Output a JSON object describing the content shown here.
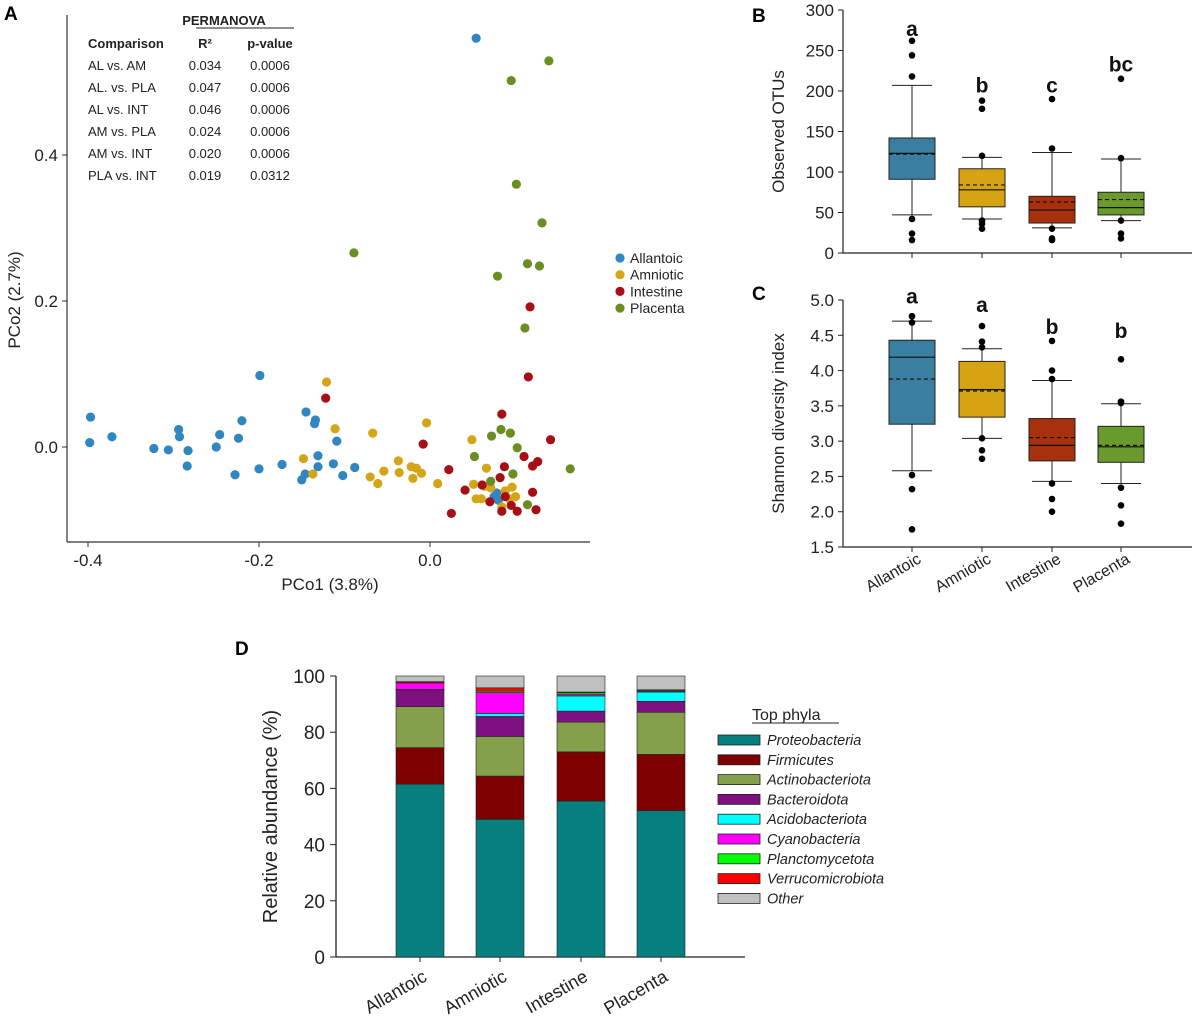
{
  "chart_data": [
    {
      "panel": "A",
      "type": "scatter",
      "xlabel": "PCo1 (3.8%)",
      "ylabel": "PCo2 (2.7%)",
      "xticks": [
        "-0.4",
        "-0.2",
        "0.0"
      ],
      "xtick_values": [
        -0.4,
        -0.2,
        0.0
      ],
      "yticks": [
        "0.0",
        "0.2",
        "0.4"
      ],
      "ytick_values": [
        0.0,
        0.2,
        0.4
      ],
      "legend_position": "right",
      "table": {
        "title": "PERMANOVA",
        "headers": [
          "Comparison",
          "R²",
          "p-value"
        ],
        "rows": [
          [
            "AL vs. AM",
            "0.034",
            "0.0006"
          ],
          [
            "AL. vs. PLA",
            "0.047",
            "0.0006"
          ],
          [
            "AL vs. INT",
            "0.046",
            "0.0006"
          ],
          [
            "AM vs. PLA",
            "0.024",
            "0.0006"
          ],
          [
            "AM vs. INT",
            "0.020",
            "0.0006"
          ],
          [
            "PLA vs. INT",
            "0.019",
            "0.0312"
          ]
        ]
      },
      "series": [
        {
          "name": "Allantoic",
          "color": "#2f86c0",
          "points": [
            [
              0.054,
              0.56
            ],
            [
              -0.397,
              0.041
            ],
            [
              -0.398,
              0.006
            ],
            [
              -0.372,
              0.014
            ],
            [
              -0.323,
              -0.002
            ],
            [
              -0.306,
              -0.004
            ],
            [
              -0.294,
              0.024
            ],
            [
              -0.293,
              0.014
            ],
            [
              -0.283,
              -0.005
            ],
            [
              -0.284,
              -0.026
            ],
            [
              -0.25,
              0.0
            ],
            [
              -0.246,
              0.017
            ],
            [
              -0.228,
              -0.038
            ],
            [
              -0.224,
              0.012
            ],
            [
              -0.22,
              0.036
            ],
            [
              -0.199,
              0.098
            ],
            [
              -0.2,
              -0.03
            ],
            [
              -0.173,
              -0.024
            ],
            [
              -0.15,
              -0.045
            ],
            [
              -0.146,
              -0.037
            ],
            [
              -0.145,
              0.048
            ],
            [
              -0.134,
              0.037
            ],
            [
              -0.135,
              0.032
            ],
            [
              -0.131,
              -0.012
            ],
            [
              -0.131,
              -0.027
            ],
            [
              -0.113,
              -0.023
            ],
            [
              -0.109,
              0.008
            ],
            [
              -0.102,
              -0.039
            ],
            [
              -0.088,
              -0.028
            ],
            [
              0.078,
              -0.063
            ],
            [
              0.08,
              -0.073
            ],
            [
              0.075,
              -0.068
            ]
          ]
        },
        {
          "name": "Amniotic",
          "color": "#d4a517",
          "points": [
            [
              -0.121,
              0.089
            ],
            [
              -0.111,
              0.025
            ],
            [
              -0.148,
              -0.016
            ],
            [
              -0.137,
              -0.037
            ],
            [
              -0.067,
              0.019
            ],
            [
              -0.07,
              -0.041
            ],
            [
              -0.061,
              -0.05
            ],
            [
              -0.054,
              -0.033
            ],
            [
              -0.037,
              -0.019
            ],
            [
              -0.036,
              -0.035
            ],
            [
              -0.022,
              -0.027
            ],
            [
              -0.016,
              -0.029
            ],
            [
              -0.02,
              -0.043
            ],
            [
              -0.01,
              -0.036
            ],
            [
              -0.004,
              0.033
            ],
            [
              0.009,
              -0.05
            ],
            [
              0.049,
              0.01
            ],
            [
              0.066,
              -0.029
            ],
            [
              0.051,
              -0.051
            ],
            [
              0.054,
              -0.071
            ],
            [
              0.064,
              -0.054
            ],
            [
              0.071,
              -0.056
            ],
            [
              0.084,
              -0.082
            ],
            [
              0.096,
              -0.055
            ],
            [
              0.1,
              -0.068
            ],
            [
              0.093,
              -0.071
            ],
            [
              0.06,
              -0.071
            ],
            [
              0.088,
              -0.06
            ]
          ]
        },
        {
          "name": "Intestine",
          "color": "#a50f15",
          "points": [
            [
              -0.122,
              0.067
            ],
            [
              -0.008,
              0.004
            ],
            [
              0.022,
              -0.031
            ],
            [
              0.025,
              -0.091
            ],
            [
              0.041,
              -0.059
            ],
            [
              0.084,
              0.045
            ],
            [
              0.117,
              0.192
            ],
            [
              0.115,
              0.096
            ],
            [
              0.141,
              0.01
            ],
            [
              0.11,
              -0.013
            ],
            [
              0.126,
              -0.02
            ],
            [
              0.12,
              -0.026
            ],
            [
              0.12,
              -0.062
            ],
            [
              0.124,
              -0.086
            ],
            [
              0.102,
              -0.088
            ],
            [
              0.084,
              -0.088
            ],
            [
              0.087,
              -0.027
            ],
            [
              0.082,
              -0.042
            ],
            [
              0.061,
              -0.052
            ],
            [
              0.088,
              -0.068
            ],
            [
              0.07,
              -0.075
            ],
            [
              0.095,
              -0.08
            ]
          ]
        },
        {
          "name": "Placenta",
          "color": "#6b8e23",
          "points": [
            [
              0.139,
              0.529
            ],
            [
              0.095,
              0.502
            ],
            [
              0.101,
              0.36
            ],
            [
              0.131,
              0.307
            ],
            [
              -0.089,
              0.266
            ],
            [
              0.114,
              0.251
            ],
            [
              0.128,
              0.248
            ],
            [
              0.079,
              0.234
            ],
            [
              0.111,
              0.163
            ],
            [
              0.072,
              0.015
            ],
            [
              0.083,
              0.024
            ],
            [
              0.094,
              0.019
            ],
            [
              0.102,
              -0.001
            ],
            [
              0.052,
              -0.013
            ],
            [
              0.097,
              -0.037
            ],
            [
              0.164,
              -0.03
            ],
            [
              0.071,
              -0.047
            ],
            [
              0.114,
              -0.079
            ]
          ]
        }
      ]
    },
    {
      "panel": "B",
      "type": "box",
      "ylabel": "Observed OTUs",
      "ylim": [
        0,
        300
      ],
      "yticks": [
        "0",
        "50",
        "100",
        "150",
        "200",
        "250",
        "300"
      ],
      "categories": [
        "Allantoic",
        "Amniotic",
        "Intestine",
        "Placenta"
      ],
      "colors": [
        "#3a7ea0",
        "#d6a413",
        "#a8300c",
        "#6a9a2e"
      ],
      "boxes": [
        {
          "q1": 91,
          "median": 123,
          "q3": 142,
          "mean": 122,
          "whisker_low": 47,
          "whisker_high": 207,
          "outliers": [
            262,
            244,
            218,
            42,
            24,
            16
          ],
          "letter": "a",
          "letter_at": 268
        },
        {
          "q1": 57,
          "median": 78,
          "q3": 104,
          "mean": 84,
          "whisker_low": 42,
          "whisker_high": 118,
          "outliers": [
            188,
            178,
            120,
            40,
            36,
            30
          ],
          "letter": "b",
          "letter_at": 198
        },
        {
          "q1": 37,
          "median": 53,
          "q3": 70,
          "mean": 63,
          "whisker_low": 31,
          "whisker_high": 124,
          "outliers": [
            190,
            129,
            30,
            18,
            16
          ],
          "letter": "c",
          "letter_at": 198
        },
        {
          "q1": 47,
          "median": 56,
          "q3": 75,
          "mean": 66,
          "whisker_low": 40,
          "whisker_high": 116,
          "outliers": [
            215,
            117,
            40,
            24,
            18
          ],
          "letter": "bc",
          "letter_at": 224
        }
      ]
    },
    {
      "panel": "C",
      "type": "box",
      "ylabel": "Shannon diversity index",
      "ylim": [
        1.5,
        5.0
      ],
      "yticks": [
        "1.5",
        "2.0",
        "2.5",
        "3.0",
        "3.5",
        "4.0",
        "4.5",
        "5.0"
      ],
      "categories": [
        "Allantoic",
        "Amniotic",
        "Intestine",
        "Placenta"
      ],
      "colors": [
        "#3a7ea0",
        "#d6a413",
        "#a8300c",
        "#6a9a2e"
      ],
      "boxes": [
        {
          "q1": 3.24,
          "median": 4.19,
          "q3": 4.43,
          "mean": 3.88,
          "whisker_low": 2.58,
          "whisker_high": 4.7,
          "outliers": [
            4.77,
            4.68,
            2.52,
            2.32,
            1.75
          ],
          "letter": "a",
          "letter_at": 4.95
        },
        {
          "q1": 3.34,
          "median": 3.73,
          "q3": 4.13,
          "mean": 3.71,
          "whisker_low": 3.04,
          "whisker_high": 4.31,
          "outliers": [
            4.63,
            4.41,
            4.33,
            3.04,
            2.87,
            2.75
          ],
          "letter": "a",
          "letter_at": 4.83
        },
        {
          "q1": 2.72,
          "median": 2.94,
          "q3": 3.32,
          "mean": 3.05,
          "whisker_low": 2.43,
          "whisker_high": 3.86,
          "outliers": [
            4.42,
            4.0,
            3.88,
            2.4,
            2.18,
            2.0
          ],
          "letter": "b",
          "letter_at": 4.52
        },
        {
          "q1": 2.7,
          "median": 2.92,
          "q3": 3.21,
          "mean": 2.94,
          "whisker_low": 2.4,
          "whisker_high": 3.53,
          "outliers": [
            4.16,
            3.56,
            3.54,
            2.34,
            2.09,
            1.83
          ],
          "letter": "b",
          "letter_at": 4.46
        }
      ]
    },
    {
      "panel": "D",
      "type": "bar",
      "stacked": true,
      "ylabel": "Relative abundance (%)",
      "ylim": [
        0,
        100
      ],
      "yticks": [
        "0",
        "20",
        "40",
        "60",
        "80",
        "100"
      ],
      "categories": [
        "Allantoic",
        "Amniotic",
        "Intestine",
        "Placenta"
      ],
      "legend_title": "Top phyla",
      "legend_position": "right",
      "series": [
        {
          "name": "Proteobacteria",
          "color": "#087f7f",
          "values": [
            61.5,
            49.0,
            55.5,
            52.1
          ]
        },
        {
          "name": "Firmicutes",
          "color": "#7f0000",
          "values": [
            13.0,
            15.4,
            17.5,
            20.0
          ]
        },
        {
          "name": "Actinobacteriota",
          "color": "#85a04a",
          "values": [
            14.6,
            14.1,
            10.6,
            15.0
          ]
        },
        {
          "name": "Bacteroidota",
          "color": "#7f107f",
          "values": [
            5.9,
            7.1,
            3.9,
            3.9
          ]
        },
        {
          "name": "Acidobacteriota",
          "color": "#00ffff",
          "values": [
            0.2,
            1.1,
            5.4,
            3.3
          ]
        },
        {
          "name": "Cyanobacteria",
          "color": "#ff00ff",
          "values": [
            2.3,
            7.4,
            0.5,
            0.3
          ]
        },
        {
          "name": "Planctomycetota",
          "color": "#00ff00",
          "values": [
            0.1,
            0.5,
            0.6,
            0.3
          ]
        },
        {
          "name": "Verrucomicrobiota",
          "color": "#ff0000",
          "values": [
            0.4,
            1.2,
            0.3,
            0.2
          ]
        },
        {
          "name": "Other",
          "color": "#c0c0c0",
          "values": [
            2.0,
            4.2,
            5.7,
            4.9
          ]
        }
      ]
    }
  ],
  "panel_labels": [
    "A",
    "B",
    "C",
    "D"
  ]
}
